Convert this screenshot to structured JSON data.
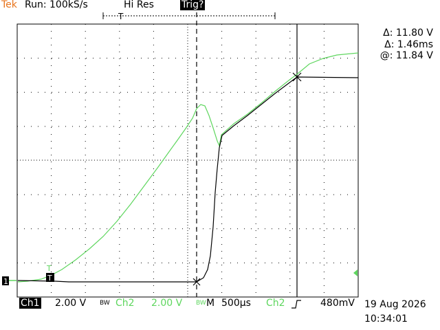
{
  "header": {
    "brand": "Tek",
    "acquisition": "Run: 100kS/s",
    "mode": "Hi Res",
    "trigger_status": "Trig?"
  },
  "cursor_readout": {
    "delta_v": "Δ: 11.80 V",
    "delta_t": "Δ: 1.46ms",
    "at_v": "@: 11.84 V"
  },
  "footer": {
    "ch1_label": "Ch1",
    "ch1_scale": "2.00 V",
    "ch1_bw": "BW",
    "ch2_label": "Ch2",
    "ch2_scale": "2.00 V",
    "ch2_bw": "BW",
    "timebase_prefix": "M",
    "timebase": "500µs",
    "trigger_source": "Ch2",
    "trigger_slope": "∫",
    "trigger_level": "480mV",
    "date": "19 Aug 2026",
    "time": "10:34:01"
  },
  "markers": {
    "trigger_position": "T",
    "ch1_ground": "1",
    "ch2_ground": "T"
  },
  "colors": {
    "ch1": "#000000",
    "ch2": "#5ed65e",
    "brand": "#e8731a",
    "grid": "#000000"
  }
}
